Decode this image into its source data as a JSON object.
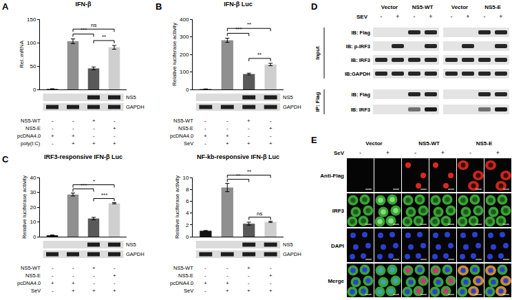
{
  "panel_labels": [
    "A",
    "B",
    "C",
    "D",
    "E"
  ],
  "chart_data": [
    {
      "type": "bar",
      "title": "IFN-β",
      "y_label": "Rel. mRNA",
      "categories": [
        null,
        null,
        null,
        null
      ],
      "values": [
        1,
        103,
        45,
        90
      ],
      "errors": [
        0.5,
        5,
        3,
        4
      ],
      "colors": [
        "#111111",
        "#8f8f8f",
        "#595959",
        "#cfcfcf"
      ],
      "ylim": [
        0,
        150
      ],
      "yticks": [
        0,
        50,
        100,
        150
      ],
      "grid": false,
      "tick_labels": "y",
      "significance": [
        {
          "from": 1,
          "to": 2,
          "label": "***"
        },
        {
          "from": 2,
          "to": 3,
          "label": "**"
        },
        {
          "from": 1,
          "to": 3,
          "label": "ns"
        }
      ],
      "blot_rows": [
        "NS5",
        "GAPDH"
      ],
      "conditions": [
        {
          "name": "NS5-WT",
          "marks": [
            "-",
            "-",
            "+",
            "-"
          ]
        },
        {
          "name": "NS5-E",
          "marks": [
            "-",
            "-",
            "-",
            "+"
          ]
        },
        {
          "name": "pcDNA4.0",
          "marks": [
            "+",
            "+",
            "-",
            "-"
          ]
        },
        {
          "name": "poly(I:C)",
          "marks": [
            "-",
            "+",
            "+",
            "+"
          ]
        }
      ]
    },
    {
      "type": "bar",
      "title": "IFN-β Luc",
      "y_label": "Relative luciferase activity",
      "categories": [
        null,
        null,
        null,
        null
      ],
      "values": [
        2,
        280,
        88,
        142
      ],
      "errors": [
        1,
        12,
        5,
        7
      ],
      "colors": [
        "#111111",
        "#8f8f8f",
        "#595959",
        "#cfcfcf"
      ],
      "ylim": [
        0,
        400
      ],
      "yticks": [
        0,
        100,
        200,
        300,
        400
      ],
      "grid": false,
      "tick_labels": "y",
      "significance": [
        {
          "from": 1,
          "to": 2,
          "label": "***"
        },
        {
          "from": 2,
          "to": 3,
          "label": "**"
        },
        {
          "from": 1,
          "to": 3,
          "label": "**"
        }
      ],
      "blot_rows": [
        "NS5",
        "GAPDH"
      ],
      "conditions": [
        {
          "name": "NS5-WT",
          "marks": [
            "-",
            "-",
            "+",
            "-"
          ]
        },
        {
          "name": "NS5-E",
          "marks": [
            "-",
            "-",
            "-",
            "+"
          ]
        },
        {
          "name": "pcDNA4.0",
          "marks": [
            "+",
            "+",
            "-",
            "-"
          ]
        },
        {
          "name": "SeV",
          "marks": [
            "-",
            "+",
            "+",
            "+"
          ]
        }
      ]
    },
    {
      "type": "bar",
      "title": "IRF3-responsive IFN-β Luc",
      "y_label": "Relative luciferase activity",
      "categories": [
        null,
        null,
        null,
        null
      ],
      "values": [
        1,
        28.5,
        12.3,
        22.6
      ],
      "errors": [
        0.2,
        1,
        0.8,
        0.4
      ],
      "colors": [
        "#111111",
        "#8f8f8f",
        "#595959",
        "#cfcfcf"
      ],
      "ylim": [
        0,
        40
      ],
      "yticks": [
        0,
        10,
        20,
        30,
        40
      ],
      "grid": false,
      "tick_labels": "y",
      "significance": [
        {
          "from": 1,
          "to": 2,
          "label": "***"
        },
        {
          "from": 2,
          "to": 3,
          "label": "***"
        },
        {
          "from": 1,
          "to": 3,
          "label": "*"
        }
      ],
      "blot_rows": [
        "NS5",
        "GAPDH"
      ],
      "conditions": [
        {
          "name": "NS5-WT",
          "marks": [
            "-",
            "-",
            "+",
            "-"
          ]
        },
        {
          "name": "NS5-E",
          "marks": [
            "-",
            "-",
            "-",
            "+"
          ]
        },
        {
          "name": "pcDNA4.0",
          "marks": [
            "+",
            "+",
            "-",
            "-"
          ]
        },
        {
          "name": "SeV",
          "marks": [
            "-",
            "+",
            "+",
            "+"
          ]
        }
      ]
    },
    {
      "type": "bar",
      "title": "NF-kb-responsive IFN-β Luc",
      "y_label": "Relative luciferase activity",
      "categories": [
        null,
        null,
        null,
        null
      ],
      "values": [
        1,
        8.3,
        2.2,
        2.5
      ],
      "errors": [
        0.05,
        0.7,
        0.25,
        0.1
      ],
      "colors": [
        "#111111",
        "#8f8f8f",
        "#595959",
        "#cfcfcf"
      ],
      "ylim": [
        0,
        10
      ],
      "yticks": [
        0,
        2,
        4,
        6,
        8,
        10
      ],
      "grid": false,
      "tick_labels": "y",
      "significance": [
        {
          "from": 1,
          "to": 2,
          "label": "**"
        },
        {
          "from": 2,
          "to": 3,
          "label": "ns"
        },
        {
          "from": 1,
          "to": 3,
          "label": "**"
        }
      ],
      "blot_rows": [
        "NS5",
        "GAPDH"
      ],
      "conditions": [
        {
          "name": "NS5-WT",
          "marks": [
            "-",
            "-",
            "+",
            "-"
          ]
        },
        {
          "name": "NS5-E",
          "marks": [
            "-",
            "-",
            "-",
            "+"
          ]
        },
        {
          "name": "pcDNA4.0",
          "marks": [
            "+",
            "+",
            "-",
            "-"
          ]
        },
        {
          "name": "SeV",
          "marks": [
            "-",
            "+",
            "+",
            "+"
          ]
        }
      ]
    }
  ],
  "blot_panel": {
    "treatment": "SEV",
    "groups": [
      "Vector",
      "NS5-WT",
      "Vector",
      "NS5-E"
    ],
    "marks": [
      "-",
      "+"
    ],
    "sections": [
      {
        "name": "Input",
        "rows": [
          "IB: Flag",
          "IB: p-IRF3",
          "IB: IRF3",
          "IB:GAPDH"
        ]
      },
      {
        "name": "IP: Flag",
        "rows": [
          "IB: Flag",
          "IB: IRF3"
        ]
      }
    ]
  },
  "imaging_panel": {
    "treatment": "SeV",
    "groups": [
      "Vector",
      "NS5-WT",
      "NS5-E"
    ],
    "marks": [
      "-",
      "+"
    ],
    "rows": [
      "Anti-Flag",
      "IRF3",
      "DAPI",
      "Merge"
    ]
  }
}
